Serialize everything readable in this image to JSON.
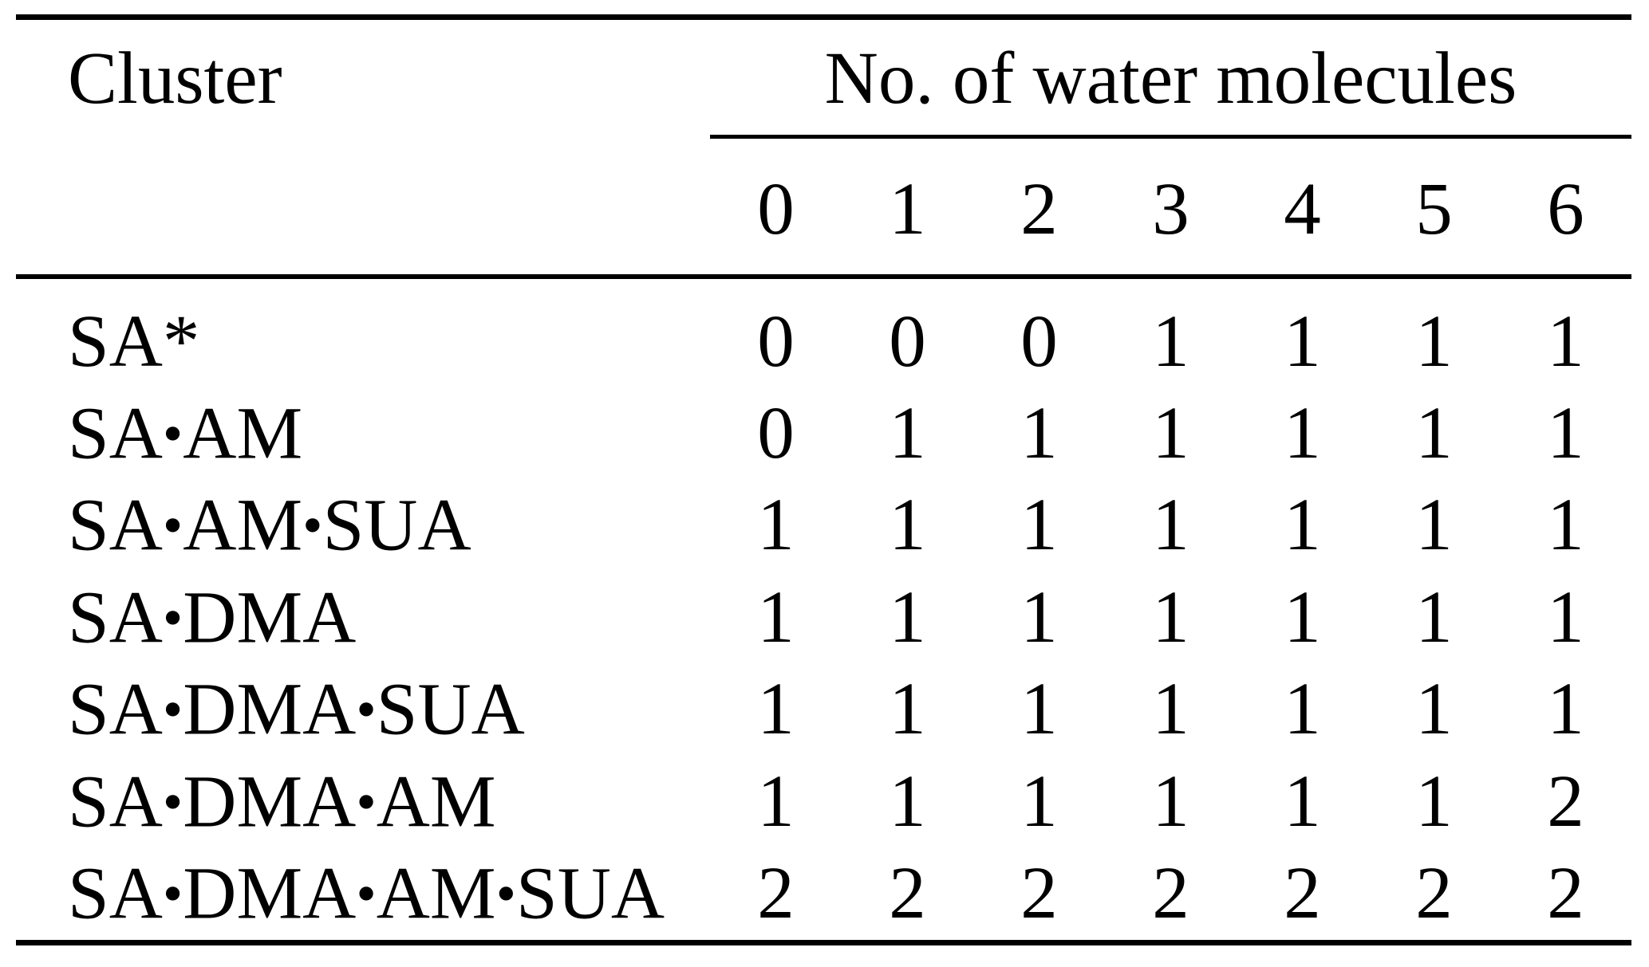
{
  "figure": {
    "background_color": "#ffffff",
    "text_color": "#000000",
    "rule_color": "#000000"
  },
  "table": {
    "cluster_header": "Cluster",
    "group_header": "No. of water molecules",
    "water_columns": [
      "0",
      "1",
      "2",
      "3",
      "4",
      "5",
      "6"
    ],
    "rows": [
      {
        "cluster": "SA*",
        "values": [
          "0",
          "0",
          "0",
          "1",
          "1",
          "1",
          "1"
        ]
      },
      {
        "cluster": "SA•AM",
        "values": [
          "0",
          "1",
          "1",
          "1",
          "1",
          "1",
          "1"
        ]
      },
      {
        "cluster": "SA•AM•SUA",
        "values": [
          "1",
          "1",
          "1",
          "1",
          "1",
          "1",
          "1"
        ]
      },
      {
        "cluster": "SA•DMA",
        "values": [
          "1",
          "1",
          "1",
          "1",
          "1",
          "1",
          "1"
        ]
      },
      {
        "cluster": "SA•DMA•SUA",
        "values": [
          "1",
          "1",
          "1",
          "1",
          "1",
          "1",
          "1"
        ]
      },
      {
        "cluster": "SA•DMA•AM",
        "values": [
          "1",
          "1",
          "1",
          "1",
          "1",
          "1",
          "2"
        ]
      },
      {
        "cluster": "SA•DMA•AM•SUA",
        "values": [
          "2",
          "2",
          "2",
          "2",
          "2",
          "2",
          "2"
        ]
      }
    ]
  }
}
